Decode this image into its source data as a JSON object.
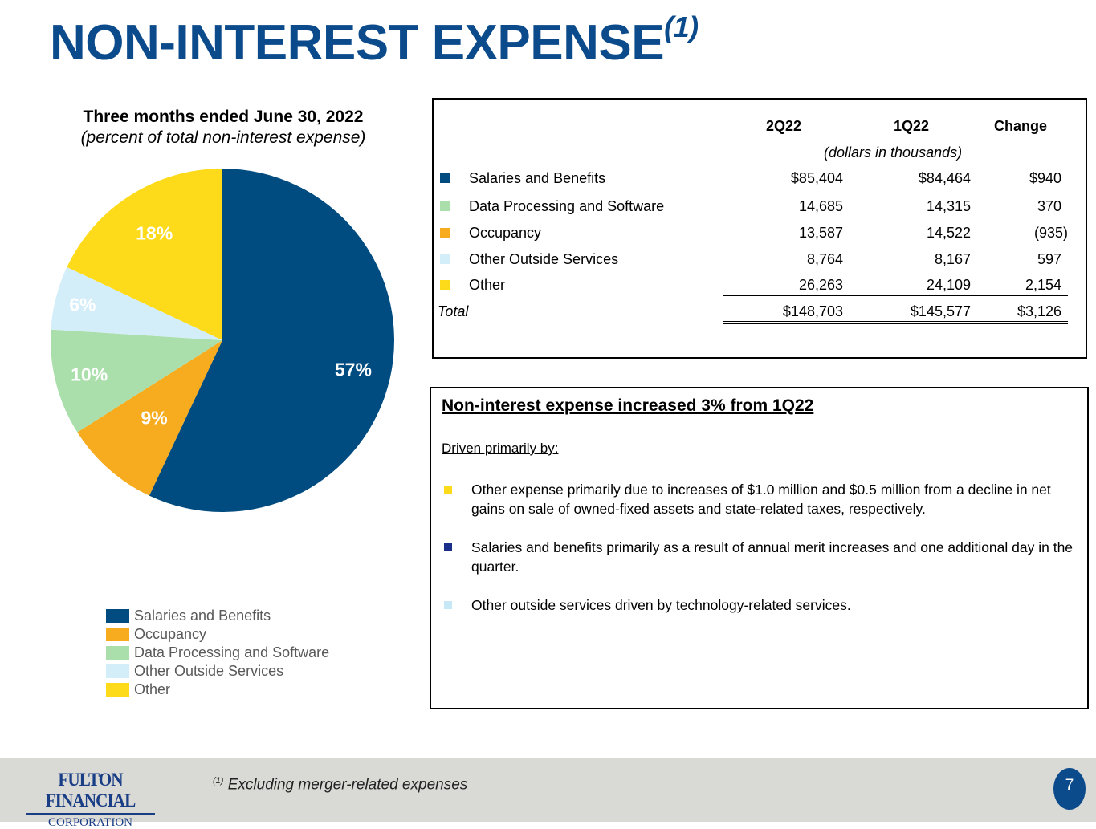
{
  "slide": {
    "title": "NON-INTEREST EXPENSE",
    "title_sup": "(1)",
    "page_number": "7"
  },
  "chart_data": {
    "type": "pie",
    "title": "Three months ended June 30, 2022",
    "subtitle": "(percent of total non-interest expense)",
    "slices": [
      {
        "name": "Salaries and Benefits",
        "value": 57,
        "label": "57%",
        "color": "#004b7f"
      },
      {
        "name": "Occupancy",
        "value": 9,
        "label": "9%",
        "color": "#f7ab1e"
      },
      {
        "name": "Data Processing and Software",
        "value": 10,
        "label": "10%",
        "color": "#aadfab"
      },
      {
        "name": "Other Outside Services",
        "value": 6,
        "label": "6%",
        "color": "#d3edf9"
      },
      {
        "name": "Other",
        "value": 18,
        "label": "18%",
        "color": "#fddb1a"
      }
    ],
    "legend": [
      "Salaries and Benefits",
      "Occupancy",
      "Data Processing and Software",
      "Other Outside Services",
      "Other"
    ],
    "legend_position": "bottom"
  },
  "table": {
    "headers": [
      "2Q22",
      "1Q22",
      "Change"
    ],
    "units": "(dollars in thousands)",
    "rows": [
      {
        "label": "Salaries and Benefits",
        "c1": "$85,404",
        "c2": "$84,464",
        "c3": "$940",
        "color": "#004b7f"
      },
      {
        "label": "Data Processing and Software",
        "c1": "14,685",
        "c2": "14,315",
        "c3": "370",
        "color": "#aadfab"
      },
      {
        "label": "Occupancy",
        "c1": "13,587",
        "c2": "14,522",
        "c3": "(935)",
        "color": "#f7ab1e"
      },
      {
        "label": "Other Outside Services",
        "c1": "8,764",
        "c2": "8,167",
        "c3": "597",
        "color": "#d3edf9"
      },
      {
        "label": "Other",
        "c1": "26,263",
        "c2": "24,109",
        "c3": "2,154",
        "color": "#fddb1a"
      }
    ],
    "total": {
      "label": "Total",
      "c1": "$148,703",
      "c2": "$145,577",
      "c3": "$3,126"
    }
  },
  "commentary": {
    "heading": "Non-interest expense increased 3% from 1Q22",
    "subheading": "Driven primarily by:",
    "bullets": [
      {
        "text": "Other expense primarily due to increases of $1.0 million and $0.5 million from a decline in net gains on sale of owned-fixed assets and state-related taxes, respectively.",
        "color": "#fddb1a"
      },
      {
        "text": "Salaries and benefits primarily as a result of annual merit increases and one additional day in the quarter.",
        "color": "#1a2f8a"
      },
      {
        "text": "Other outside services driven by technology-related services.",
        "color": "#c6e8f7"
      }
    ]
  },
  "footer": {
    "logo_line1": "FULTON FINANCIAL",
    "logo_line2": "CORPORATION",
    "footnote_mark": "(1)",
    "footnote": "Excluding merger-related expenses"
  }
}
